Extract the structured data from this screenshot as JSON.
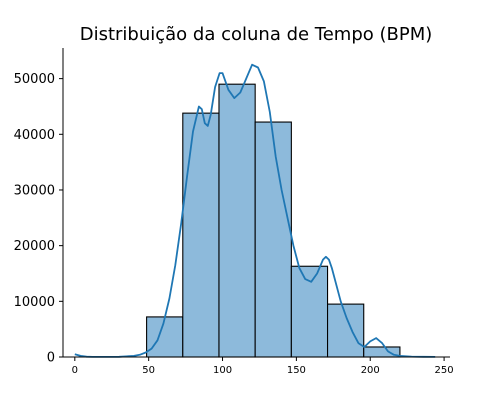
{
  "chart_data": {
    "type": "bar",
    "title": "Distribuição da coluna de Tempo (BPM)",
    "xlabel": "",
    "ylabel": "",
    "xlim": [
      -8,
      254
    ],
    "ylim": [
      0,
      55500
    ],
    "x_ticks": [
      0,
      50,
      100,
      150,
      200,
      250
    ],
    "y_ticks": [
      0,
      10000,
      20000,
      30000,
      40000,
      50000
    ],
    "bins": [
      {
        "x0": 48.6,
        "x1": 73.1,
        "count": 7200
      },
      {
        "x0": 73.1,
        "x1": 97.6,
        "count": 43800
      },
      {
        "x0": 97.6,
        "x1": 122.1,
        "count": 49000
      },
      {
        "x0": 122.1,
        "x1": 146.6,
        "count": 42200
      },
      {
        "x0": 146.6,
        "x1": 171.1,
        "count": 16300
      },
      {
        "x0": 171.1,
        "x1": 195.6,
        "count": 9500
      },
      {
        "x0": 195.6,
        "x1": 220.1,
        "count": 1800
      }
    ],
    "kde": {
      "x": [
        0,
        4,
        8,
        12,
        20,
        30,
        40,
        44,
        48,
        52,
        56,
        60,
        64,
        68,
        72,
        76,
        80,
        84,
        86,
        88,
        90,
        92,
        95,
        98,
        100,
        104,
        108,
        112,
        116,
        120,
        124,
        128,
        132,
        136,
        140,
        144,
        148,
        152,
        156,
        160,
        164,
        168,
        170,
        172,
        174,
        176,
        180,
        184,
        188,
        192,
        196,
        200,
        204,
        208,
        212,
        216,
        220,
        228,
        236,
        244
      ],
      "y": [
        500,
        200,
        50,
        20,
        10,
        30,
        200,
        400,
        800,
        1500,
        3000,
        6000,
        10500,
        16500,
        24000,
        32500,
        40500,
        45000,
        44500,
        42000,
        41500,
        43500,
        48500,
        51000,
        51000,
        48000,
        46500,
        47500,
        50000,
        52500,
        52000,
        49500,
        44000,
        36000,
        30000,
        25000,
        20000,
        16000,
        14000,
        13500,
        15000,
        17500,
        18000,
        17500,
        16000,
        14000,
        10000,
        7000,
        4500,
        2500,
        1800,
        2800,
        3400,
        2500,
        1000,
        400,
        200,
        80,
        30,
        10
      ]
    }
  }
}
